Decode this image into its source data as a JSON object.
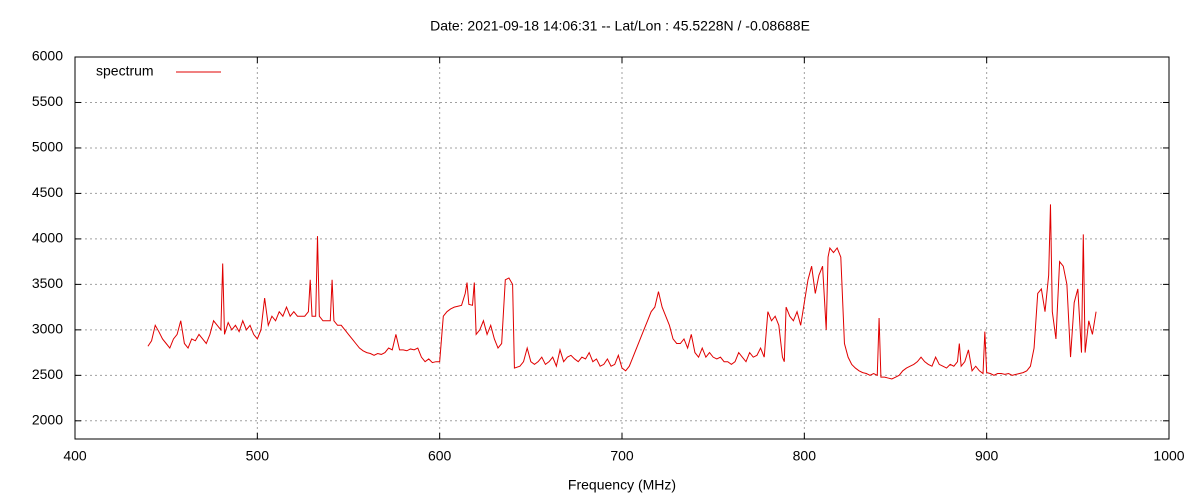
{
  "chart_data": {
    "type": "line",
    "title": "Date: 2021-09-18 14:06:31  --  Lat/Lon : 45.5228N / -0.08688E",
    "x_label": "Frequency (MHz)",
    "legend": "top-left",
    "grid": true,
    "xlim": [
      400,
      1000
    ],
    "xticks": [
      400,
      500,
      600,
      700,
      800,
      900,
      1000
    ],
    "ylim": [
      1800,
      6000
    ],
    "yticks": [
      2000,
      2500,
      3000,
      3500,
      4000,
      4500,
      5000,
      5500,
      6000
    ],
    "series": [
      {
        "name": "spectrum",
        "color": "#e00000",
        "x": [
          440,
          442,
          444,
          446,
          448,
          450,
          452,
          454,
          456,
          458,
          460,
          462,
          464,
          466,
          468,
          470,
          472,
          474,
          476,
          478,
          480,
          481,
          482,
          484,
          486,
          488,
          490,
          492,
          494,
          496,
          498,
          500,
          502,
          504,
          506,
          508,
          510,
          512,
          514,
          516,
          518,
          520,
          522,
          524,
          526,
          528,
          529,
          530,
          532,
          533,
          534,
          536,
          538,
          540,
          541,
          542,
          544,
          546,
          548,
          550,
          552,
          554,
          556,
          558,
          560,
          562,
          564,
          566,
          568,
          570,
          572,
          574,
          576,
          578,
          580,
          582,
          584,
          586,
          588,
          590,
          592,
          594,
          596,
          598,
          600,
          602,
          604,
          606,
          608,
          610,
          612,
          614,
          615,
          616,
          618,
          619,
          620,
          622,
          624,
          626,
          628,
          630,
          632,
          634,
          636,
          638,
          640,
          641,
          644,
          646,
          648,
          650,
          652,
          654,
          656,
          658,
          660,
          662,
          664,
          666,
          668,
          670,
          672,
          674,
          676,
          678,
          680,
          682,
          684,
          686,
          688,
          690,
          692,
          694,
          696,
          698,
          700,
          702,
          704,
          706,
          708,
          710,
          712,
          714,
          716,
          718,
          720,
          722,
          724,
          726,
          728,
          730,
          732,
          734,
          736,
          738,
          740,
          742,
          744,
          746,
          748,
          750,
          752,
          754,
          756,
          758,
          760,
          762,
          764,
          766,
          768,
          770,
          772,
          774,
          776,
          778,
          780,
          782,
          784,
          786,
          788,
          789,
          790,
          792,
          794,
          796,
          798,
          800,
          802,
          804,
          806,
          808,
          810,
          812,
          813,
          814,
          816,
          818,
          820,
          822,
          824,
          826,
          828,
          830,
          832,
          834,
          836,
          838,
          840,
          841,
          842,
          844,
          846,
          848,
          850,
          852,
          854,
          856,
          858,
          860,
          862,
          864,
          866,
          868,
          870,
          872,
          874,
          876,
          878,
          880,
          882,
          884,
          885,
          886,
          888,
          890,
          892,
          894,
          896,
          898,
          899,
          900,
          902,
          904,
          906,
          908,
          910,
          912,
          914,
          916,
          918,
          920,
          922,
          924,
          926,
          928,
          930,
          932,
          934,
          935,
          936,
          938,
          940,
          942,
          944,
          946,
          948,
          950,
          952,
          953,
          954,
          956,
          958,
          960
        ],
        "values": [
          2820,
          2880,
          3050,
          2980,
          2900,
          2850,
          2800,
          2900,
          2950,
          3100,
          2850,
          2800,
          2900,
          2880,
          2950,
          2900,
          2850,
          2950,
          3100,
          3050,
          3000,
          3730,
          2950,
          3080,
          3000,
          3050,
          2980,
          3100,
          3000,
          3050,
          2950,
          2900,
          3000,
          3350,
          3050,
          3150,
          3100,
          3200,
          3150,
          3250,
          3150,
          3200,
          3150,
          3150,
          3150,
          3200,
          3550,
          3150,
          3150,
          4030,
          3150,
          3100,
          3100,
          3100,
          3550,
          3100,
          3050,
          3050,
          3000,
          2950,
          2900,
          2850,
          2800,
          2770,
          2750,
          2740,
          2720,
          2740,
          2730,
          2750,
          2800,
          2780,
          2950,
          2780,
          2780,
          2770,
          2790,
          2780,
          2800,
          2700,
          2650,
          2680,
          2640,
          2650,
          2650,
          3150,
          3200,
          3230,
          3250,
          3260,
          3270,
          3400,
          3520,
          3280,
          3270,
          3520,
          2950,
          3000,
          3100,
          2950,
          3050,
          2900,
          2800,
          2850,
          3550,
          3570,
          3500,
          2580,
          2600,
          2650,
          2800,
          2650,
          2620,
          2650,
          2700,
          2620,
          2650,
          2700,
          2600,
          2780,
          2650,
          2700,
          2720,
          2680,
          2650,
          2700,
          2680,
          2750,
          2650,
          2680,
          2600,
          2620,
          2680,
          2600,
          2620,
          2720,
          2580,
          2550,
          2600,
          2700,
          2800,
          2900,
          3000,
          3100,
          3200,
          3250,
          3420,
          3250,
          3150,
          3050,
          2900,
          2850,
          2850,
          2900,
          2800,
          2950,
          2750,
          2700,
          2800,
          2700,
          2750,
          2700,
          2680,
          2700,
          2650,
          2650,
          2620,
          2650,
          2750,
          2700,
          2650,
          2750,
          2700,
          2720,
          2800,
          2700,
          3200,
          3100,
          3150,
          3050,
          2700,
          2650,
          3250,
          3150,
          3100,
          3200,
          3050,
          3300,
          3550,
          3700,
          3400,
          3600,
          3700,
          3000,
          3800,
          3900,
          3850,
          3900,
          3800,
          2850,
          2700,
          2620,
          2580,
          2550,
          2530,
          2520,
          2500,
          2520,
          2500,
          3130,
          2480,
          2480,
          2470,
          2460,
          2480,
          2500,
          2550,
          2580,
          2600,
          2620,
          2650,
          2700,
          2650,
          2620,
          2600,
          2700,
          2620,
          2600,
          2580,
          2620,
          2600,
          2650,
          2850,
          2600,
          2650,
          2780,
          2550,
          2600,
          2550,
          2520,
          2980,
          2530,
          2520,
          2500,
          2520,
          2520,
          2510,
          2520,
          2500,
          2510,
          2520,
          2530,
          2550,
          2600,
          2800,
          3400,
          3450,
          3200,
          3600,
          4380,
          3200,
          2900,
          3750,
          3700,
          3500,
          2700,
          3300,
          3450,
          2750,
          4050,
          2750,
          3100,
          2950,
          3200
        ]
      }
    ]
  }
}
